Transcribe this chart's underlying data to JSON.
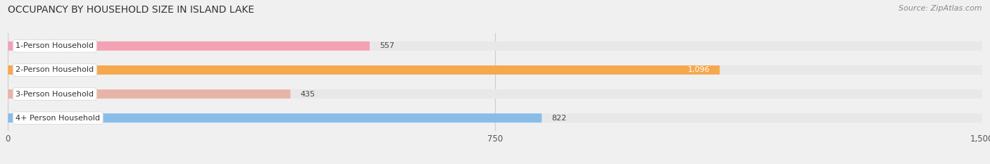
{
  "title": "OCCUPANCY BY HOUSEHOLD SIZE IN ISLAND LAKE",
  "source": "Source: ZipAtlas.com",
  "categories": [
    "1-Person Household",
    "2-Person Household",
    "3-Person Household",
    "4+ Person Household"
  ],
  "values": [
    557,
    1096,
    435,
    822
  ],
  "bar_colors": [
    "#f4a0b5",
    "#f5a84e",
    "#e8b4a8",
    "#87bde8"
  ],
  "bar_bg_color": "#e8e8e8",
  "xlim_max": 1500,
  "xticks": [
    0,
    750,
    1500
  ],
  "value_label_colors": [
    "#555555",
    "#ffffff",
    "#555555",
    "#555555"
  ],
  "fig_bg_color": "#f0f0f0",
  "plot_bg_color": "#f0f0f0",
  "title_fontsize": 10,
  "source_fontsize": 8,
  "bar_label_fontsize": 8,
  "value_fontsize": 8,
  "bar_height": 0.38,
  "bar_spacing": 1.0
}
